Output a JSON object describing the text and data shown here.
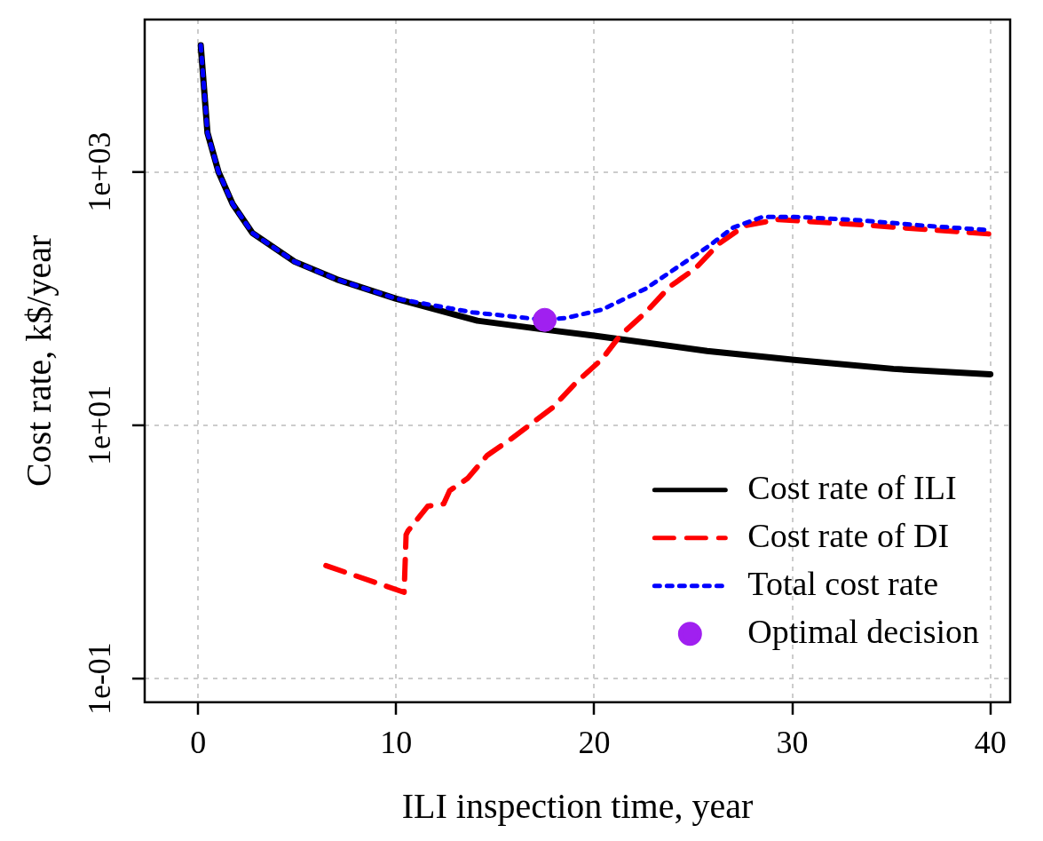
{
  "chart_data": {
    "type": "line",
    "xlabel": "ILI inspection time, year",
    "ylabel": "Cost rate, k$/year",
    "log": "y",
    "grid": true,
    "legend": "bottom right",
    "xlim": [
      -2.7,
      41
    ],
    "ylim": [
      0.065,
      16000
    ],
    "xticks": [
      0,
      10,
      20,
      30,
      40
    ],
    "yticks": [
      {
        "value": 0.1,
        "label": "1e-01"
      },
      {
        "value": 10,
        "label": "1e+01"
      },
      {
        "value": 1000,
        "label": "1e+03"
      }
    ],
    "series": [
      {
        "name": "Cost rate of ILI",
        "color": "#000000",
        "line_style": "solid",
        "x": [
          0.13,
          0.47,
          1.03,
          1.75,
          2.74,
          4.87,
          7.0,
          10.0,
          14.1,
          17.5,
          20.0,
          25.7,
          30.1,
          35.1,
          40
        ],
        "values": [
          10000,
          2040,
          1000,
          556,
          330,
          196,
          142,
          100,
          67,
          57,
          51,
          38.6,
          32.8,
          27.9,
          25.3
        ]
      },
      {
        "name": "Cost rate of DI",
        "color": "#ff0000",
        "line_style": "dashed",
        "x": [
          6.45,
          10.4,
          10.5,
          10.6,
          11.6,
          12.4,
          12.7,
          13.6,
          14.6,
          15.7,
          17.0,
          17.9,
          19.1,
          20.4,
          21.3,
          22.6,
          23.8,
          25.1,
          26.3,
          27.6,
          29.3,
          33.5,
          40
        ],
        "values": [
          0.78,
          0.48,
          1.37,
          1.47,
          2.3,
          2.4,
          3.05,
          3.8,
          5.8,
          7.6,
          10.8,
          13.8,
          21.9,
          33.4,
          51,
          78,
          124,
          173,
          272,
          377,
          422,
          383,
          324
        ]
      },
      {
        "name": "Total cost rate",
        "color": "#0000ff",
        "line_style": "dotted",
        "x": [
          0.13,
          0.47,
          1.03,
          1.75,
          2.74,
          4.87,
          7.0,
          10.0,
          13.85,
          17.5,
          18.6,
          20.4,
          22.6,
          24.1,
          25.7,
          27.0,
          28.5,
          30.1,
          33.5,
          36.7,
          40
        ],
        "values": [
          10000,
          2040,
          1000,
          556,
          330,
          196,
          142,
          100,
          78,
          68,
          70.5,
          82,
          120,
          173,
          255,
          363,
          443,
          443,
          415,
          377,
          347
        ]
      },
      {
        "name": "Optimal decision",
        "type": "scatter",
        "marker": "circle",
        "color": "#a020f0",
        "x": [
          17.5
        ],
        "values": [
          68
        ]
      }
    ]
  }
}
